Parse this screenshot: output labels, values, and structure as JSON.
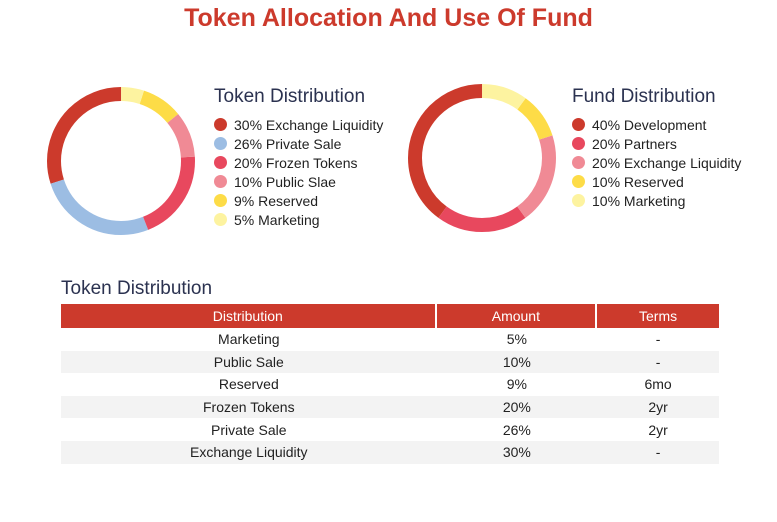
{
  "page_title": "Token Allocation And Use Of Fund",
  "colors": {
    "red": "#cc3a2c",
    "blue": "#9cbde3",
    "crimson": "#e8485e",
    "pink": "#f08a95",
    "yellow": "#fddc47",
    "light_yellow": "#fdf3a0"
  },
  "chart_data": [
    {
      "type": "pie",
      "title": "Token Distribution",
      "labels": [
        "30% Exchange Liquidity",
        "26% Private Sale",
        "20% Frozen Tokens",
        "10% Public Slae",
        "9% Reserved",
        "5% Marketing"
      ],
      "categories": [
        "Exchange Liquidity",
        "Private Sale",
        "Frozen Tokens",
        "Public Slae",
        "Reserved",
        "Marketing"
      ],
      "values": [
        30,
        26,
        20,
        10,
        9,
        5
      ],
      "colors": [
        "#cc3a2c",
        "#9cbde3",
        "#e8485e",
        "#f08a95",
        "#fddc47",
        "#fdf3a0"
      ],
      "legend": "right"
    },
    {
      "type": "pie",
      "title": "Fund Distribution",
      "labels": [
        "40% Development",
        "20% Partners",
        "20% Exchange Liquidity",
        "10% Reserved",
        "10% Marketing"
      ],
      "categories": [
        "Development",
        "Partners",
        "Exchange Liquidity",
        "Reserved",
        "Marketing"
      ],
      "values": [
        40,
        20,
        20,
        10,
        10
      ],
      "colors": [
        "#cc3a2c",
        "#e8485e",
        "#f08a95",
        "#fddc47",
        "#fdf3a0"
      ],
      "legend": "right"
    },
    {
      "type": "table",
      "title": "Token Distribution",
      "columns": [
        "Distribution",
        "Amount",
        "Terms"
      ],
      "rows": [
        [
          "Marketing",
          "5%",
          "-"
        ],
        [
          "Public Sale",
          "10%",
          "-"
        ],
        [
          "Reserved",
          "9%",
          "6mo"
        ],
        [
          "Frozen Tokens",
          "20%",
          "2yr"
        ],
        [
          "Private Sale",
          "26%",
          "2yr"
        ],
        [
          "Exchange Liquidity",
          "30%",
          "-"
        ]
      ]
    }
  ]
}
